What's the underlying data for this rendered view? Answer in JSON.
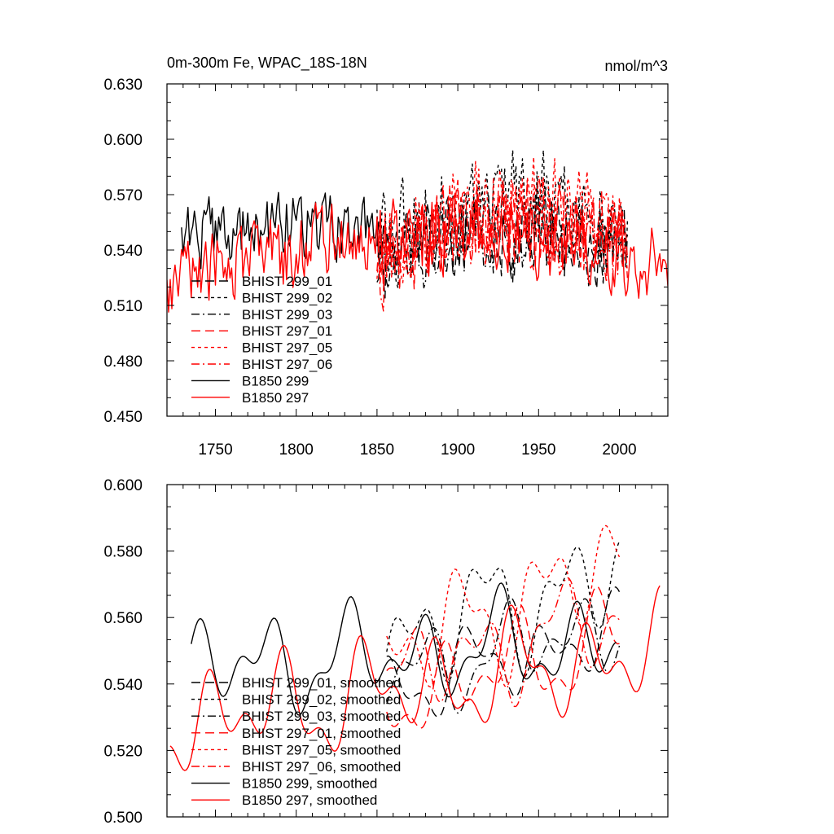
{
  "chart_data": [
    {
      "type": "line",
      "title": "0m-300m Fe, WPAC_18S-18N",
      "units": "nmol/m^3",
      "xlim": [
        1720,
        2030
      ],
      "ylim": [
        0.45,
        0.63
      ],
      "xticks": [
        1750,
        1800,
        1850,
        1900,
        1950,
        2000
      ],
      "xtick_labels": [
        "1750",
        "1800",
        "1850",
        "1900",
        "1950",
        "2000"
      ],
      "yticks": [
        0.45,
        0.48,
        0.51,
        0.54,
        0.57,
        0.6,
        0.63
      ],
      "ytick_labels": [
        "0.450",
        "0.480",
        "0.510",
        "0.540",
        "0.570",
        "0.600",
        "0.630"
      ],
      "legend_position": "lower-left",
      "series": [
        {
          "name": "BHIST 299_01",
          "color": "#000000",
          "dash": "long-dash",
          "start": 1850,
          "end": 2005,
          "base": 0.538,
          "trend": 0.012,
          "noise": 0.02,
          "seed": 11
        },
        {
          "name": "BHIST 299_02",
          "color": "#000000",
          "dash": "short-dash",
          "start": 1850,
          "end": 2005,
          "base": 0.545,
          "trend": 0.025,
          "noise": 0.022,
          "seed": 12
        },
        {
          "name": "BHIST 299_03",
          "color": "#000000",
          "dash": "dash-dot",
          "start": 1850,
          "end": 2005,
          "base": 0.536,
          "trend": 0.015,
          "noise": 0.02,
          "seed": 13
        },
        {
          "name": "BHIST 297_01",
          "color": "#ff0000",
          "dash": "long-dash",
          "start": 1850,
          "end": 2005,
          "base": 0.532,
          "trend": 0.02,
          "noise": 0.022,
          "seed": 14
        },
        {
          "name": "BHIST 297_05",
          "color": "#ff0000",
          "dash": "short-dash",
          "start": 1850,
          "end": 2005,
          "base": 0.538,
          "trend": 0.028,
          "noise": 0.022,
          "seed": 15
        },
        {
          "name": "BHIST 297_06",
          "color": "#ff0000",
          "dash": "dash-dot",
          "start": 1850,
          "end": 2005,
          "base": 0.535,
          "trend": 0.018,
          "noise": 0.022,
          "seed": 16
        },
        {
          "name": "B1850 299",
          "color": "#000000",
          "dash": "solid",
          "start": 1729,
          "end": 1851,
          "base": 0.545,
          "trend": 0.008,
          "noise": 0.016,
          "seed": 17
        },
        {
          "name": "B1850 297",
          "color": "#ff0000",
          "dash": "solid",
          "start": 1720,
          "end": 2030,
          "base": 0.524,
          "trend": 0.024,
          "noise": 0.018,
          "seed": 18
        }
      ]
    },
    {
      "type": "line",
      "xlim": [
        1720,
        2030
      ],
      "ylim": [
        0.5,
        0.6
      ],
      "xticks": [
        1750,
        1800,
        1850,
        1900,
        1950,
        2000
      ],
      "yticks": [
        0.5,
        0.52,
        0.54,
        0.56,
        0.58,
        0.6
      ],
      "ytick_labels": [
        "0.500",
        "0.520",
        "0.540",
        "0.560",
        "0.580",
        "0.600"
      ],
      "legend_position": "lower-left",
      "series": [
        {
          "name": "BHIST 299_01, smoothed",
          "color": "#000000",
          "dash": "long-dash",
          "start": 1856,
          "end": 2000,
          "base": 0.538,
          "trend": 0.018,
          "amp": 0.008,
          "seed": 21
        },
        {
          "name": "BHIST 299_02, smoothed",
          "color": "#000000",
          "dash": "short-dash",
          "start": 1856,
          "end": 2000,
          "base": 0.553,
          "trend": 0.02,
          "amp": 0.012,
          "seed": 22
        },
        {
          "name": "BHIST 299_03, smoothed",
          "color": "#000000",
          "dash": "dash-dot",
          "start": 1856,
          "end": 2000,
          "base": 0.542,
          "trend": 0.016,
          "amp": 0.009,
          "seed": 23
        },
        {
          "name": "BHIST 297_01, smoothed",
          "color": "#ff0000",
          "dash": "long-dash",
          "start": 1856,
          "end": 2000,
          "base": 0.535,
          "trend": 0.02,
          "amp": 0.01,
          "seed": 24
        },
        {
          "name": "BHIST 297_05, smoothed",
          "color": "#ff0000",
          "dash": "short-dash",
          "start": 1856,
          "end": 2000,
          "base": 0.548,
          "trend": 0.028,
          "amp": 0.012,
          "seed": 25
        },
        {
          "name": "BHIST 297_06, smoothed",
          "color": "#ff0000",
          "dash": "dash-dot",
          "start": 1856,
          "end": 2000,
          "base": 0.542,
          "trend": 0.018,
          "amp": 0.01,
          "seed": 26
        },
        {
          "name": "B1850 299, smoothed",
          "color": "#000000",
          "dash": "solid",
          "start": 1735,
          "end": 1998,
          "base": 0.545,
          "trend": 0.008,
          "amp": 0.01,
          "seed": 27
        },
        {
          "name": "B1850 297, smoothed",
          "color": "#ff0000",
          "dash": "solid",
          "start": 1722,
          "end": 2025,
          "base": 0.528,
          "trend": 0.022,
          "amp": 0.011,
          "seed": 28
        }
      ]
    }
  ]
}
